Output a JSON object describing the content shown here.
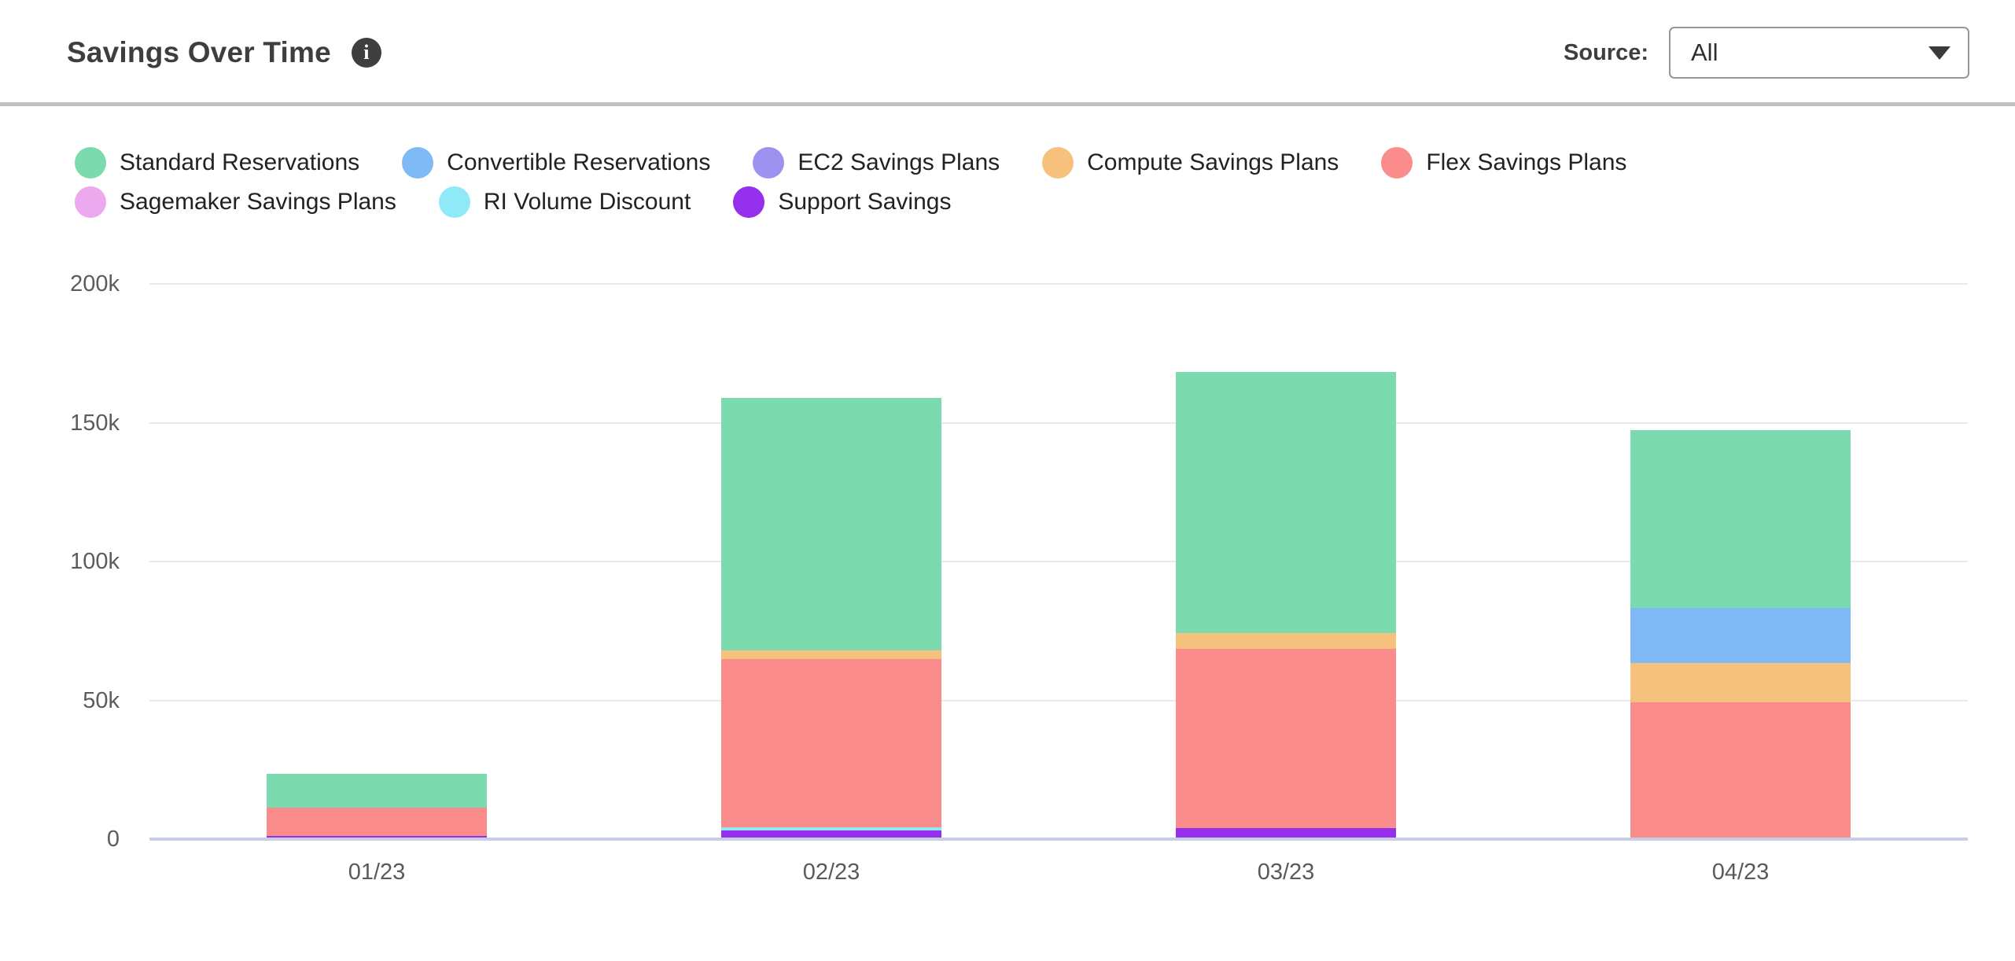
{
  "header": {
    "title": "Savings Over Time",
    "info_icon_glyph": "i",
    "source_label": "Source:",
    "source_value": "All"
  },
  "chart_data": {
    "type": "bar",
    "stacked": true,
    "title": "Savings Over Time",
    "xlabel": "",
    "ylabel": "",
    "categories": [
      "01/23",
      "02/23",
      "03/23",
      "04/23"
    ],
    "series": [
      {
        "name": "Standard Reservations",
        "color": "#7bdbae",
        "values": [
          12200,
          91100,
          94000,
          64200
        ]
      },
      {
        "name": "Convertible Reservations",
        "color": "#7fbaf7",
        "values": [
          0,
          0,
          0,
          19800
        ]
      },
      {
        "name": "EC2 Savings Plans",
        "color": "#9c93f0",
        "values": [
          0,
          0,
          0,
          0
        ]
      },
      {
        "name": "Compute Savings Plans",
        "color": "#f6c17c",
        "values": [
          0,
          2900,
          5800,
          14000
        ]
      },
      {
        "name": "Flex Savings Plans",
        "color": "#fa8c8c",
        "values": [
          10200,
          60800,
          64500,
          49400
        ]
      },
      {
        "name": "Sagemaker Savings Plans",
        "color": "#eca9ed",
        "values": [
          0,
          0,
          0,
          0
        ]
      },
      {
        "name": "RI Volume Discount",
        "color": "#90e9f8",
        "values": [
          0,
          1200,
          0,
          0
        ]
      },
      {
        "name": "Support Savings",
        "color": "#9430ec",
        "values": [
          1000,
          3000,
          4000,
          0
        ]
      }
    ],
    "stack_order_bottom_to_top": [
      "Support Savings",
      "RI Volume Discount",
      "Sagemaker Savings Plans",
      "Flex Savings Plans",
      "Compute Savings Plans",
      "EC2 Savings Plans",
      "Convertible Reservations",
      "Standard Reservations"
    ],
    "ylim": [
      0,
      200000
    ],
    "yticks": [
      {
        "value": 200000,
        "label": "200k"
      },
      {
        "value": 150000,
        "label": "150k"
      },
      {
        "value": 100000,
        "label": "100k"
      },
      {
        "value": 50000,
        "label": "50k"
      },
      {
        "value": 0,
        "label": "0"
      }
    ],
    "grid": true,
    "legend_position": "top"
  },
  "colors": {
    "baseline": "#c8cde8",
    "gridline": "#e9e9e9",
    "divider": "#c2c2c2",
    "title_text": "#3e3e3e"
  }
}
